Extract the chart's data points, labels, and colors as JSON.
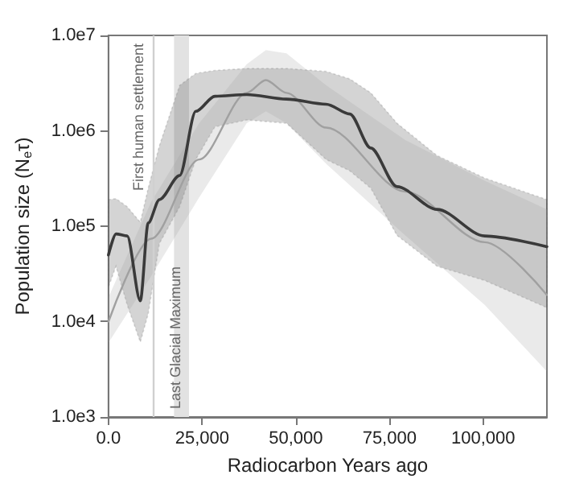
{
  "chart_data": {
    "type": "line",
    "xlabel": "Radiocarbon Years ago",
    "ylabel": "Population size (N$_{e}$τ)",
    "log": "y",
    "xlim": [
      0,
      117000
    ],
    "xticks": [
      {
        "value": 0,
        "label": "0.0"
      },
      {
        "value": 25000,
        "label": "25,000"
      },
      {
        "value": 50000,
        "label": "50,000"
      },
      {
        "value": 75000,
        "label": "75,000"
      },
      {
        "value": 100000,
        "label": "100,000"
      }
    ],
    "ylim": [
      1000,
      10000000
    ],
    "yticks": [
      {
        "value": 1000,
        "label": "1.0e3"
      },
      {
        "value": 10000,
        "label": "1.0e4"
      },
      {
        "value": 100000,
        "label": "1.0e5"
      },
      {
        "value": 1000000,
        "label": "1.0e6"
      },
      {
        "value": 10000000,
        "label": "1.0e7"
      }
    ],
    "grid": false,
    "series": [
      {
        "color": "#3a3a3a",
        "line_style": "solid",
        "x": [
          0,
          2000,
          5000,
          8500,
          10600,
          13600,
          19000,
          23300,
          28400,
          36900,
          47500,
          58100,
          64400,
          70000,
          77000,
          87700,
          100400,
          117000
        ],
        "values": [
          50000,
          83000,
          79000,
          16500,
          108000,
          190000,
          340000,
          1600000,
          2300000,
          2400000,
          2150000,
          1900000,
          1500000,
          660000,
          260000,
          150000,
          79000,
          61000
        ],
        "upper": [
          190000,
          195000,
          160000,
          110000,
          250000,
          700000,
          3000000,
          4000000,
          4300000,
          4500000,
          4500000,
          4200000,
          3500000,
          2500000,
          1200000,
          550000,
          320000,
          190000
        ],
        "lower": [
          23000,
          38000,
          15000,
          6100,
          12000,
          66000,
          160000,
          500000,
          1100000,
          1300000,
          1200000,
          500000,
          380000,
          250000,
          80000,
          38000,
          27000,
          14000
        ]
      },
      {
        "color": "#a0a0a0",
        "line_style": "solid",
        "x": [
          0,
          11400,
          24200,
          36900,
          42000,
          47500,
          58100,
          79200,
          100400,
          117000
        ],
        "values": [
          10000,
          74000,
          500000,
          2500000,
          3400000,
          2500000,
          1080000,
          230000,
          68000,
          19000
        ],
        "upper": [
          18000,
          180000,
          1200000,
          5000000,
          7000000,
          6500000,
          3000000,
          800000,
          300000,
          150000
        ],
        "lower": [
          6000,
          30000,
          200000,
          1200000,
          1600000,
          1200000,
          450000,
          80000,
          15000,
          3000
        ]
      }
    ],
    "ref_lines": [
      {
        "axis": "x",
        "value": 12000,
        "label": "First human settlement",
        "color": "#d0d0d0"
      }
    ],
    "bands": [
      {
        "axis": "x",
        "from": 17500,
        "to": 21500,
        "label": "Last Glacial Maximum",
        "color": "#e2e2e2"
      }
    ]
  }
}
